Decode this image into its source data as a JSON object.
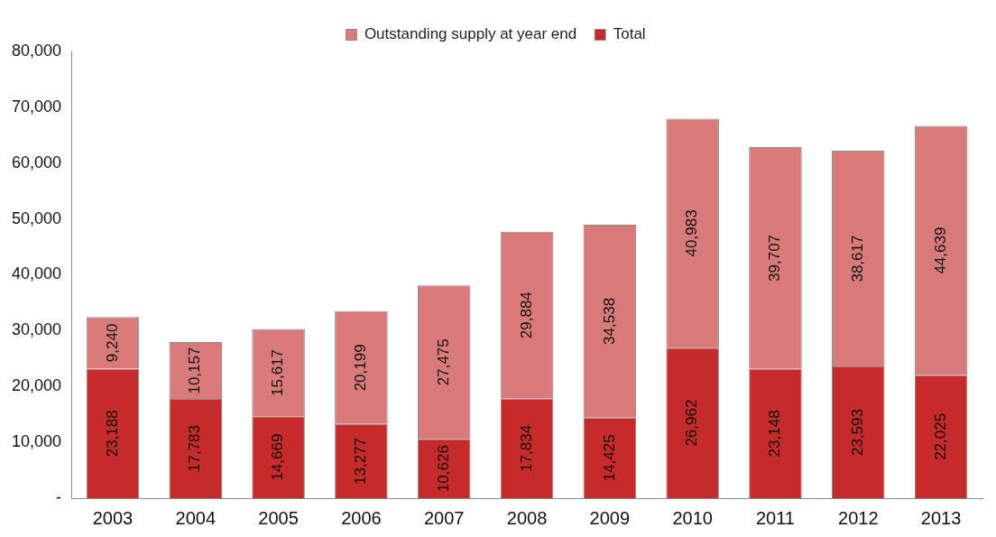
{
  "chart_data": {
    "type": "bar",
    "stacked": true,
    "categories": [
      "2003",
      "2004",
      "2005",
      "2006",
      "2007",
      "2008",
      "2009",
      "2010",
      "2011",
      "2012",
      "2013"
    ],
    "series": [
      {
        "name": "Total",
        "color": "#c62a2a",
        "values": [
          23188,
          17783,
          14669,
          13277,
          10626,
          17834,
          14425,
          26962,
          23148,
          23593,
          22025
        ],
        "value_labels": [
          "23,188",
          "17,783",
          "14,669",
          "13,277",
          "10,626",
          "17,834",
          "14,425",
          "26,962",
          "23,148",
          "23,593",
          "22,025"
        ]
      },
      {
        "name": "Outstanding supply at year end",
        "color": "#d97b7b",
        "values": [
          9240,
          10157,
          15617,
          20199,
          27475,
          29884,
          34538,
          40983,
          39707,
          38617,
          44639
        ],
        "value_labels": [
          "9,240",
          "10,157",
          "15,617",
          "20,199",
          "27,475",
          "29,884",
          "34,538",
          "40,983",
          "39,707",
          "38,617",
          "44,639"
        ]
      }
    ],
    "ylim": [
      0,
      80000
    ],
    "yticks": [
      {
        "value": 0,
        "label": "-"
      },
      {
        "value": 10000,
        "label": "10,000"
      },
      {
        "value": 20000,
        "label": "20,000"
      },
      {
        "value": 30000,
        "label": "30,000"
      },
      {
        "value": 40000,
        "label": "40,000"
      },
      {
        "value": 50000,
        "label": "50,000"
      },
      {
        "value": 60000,
        "label": "60,000"
      },
      {
        "value": 70000,
        "label": "70,000"
      },
      {
        "value": 80000,
        "label": "80,000"
      }
    ],
    "grid": false,
    "legend": "top"
  }
}
